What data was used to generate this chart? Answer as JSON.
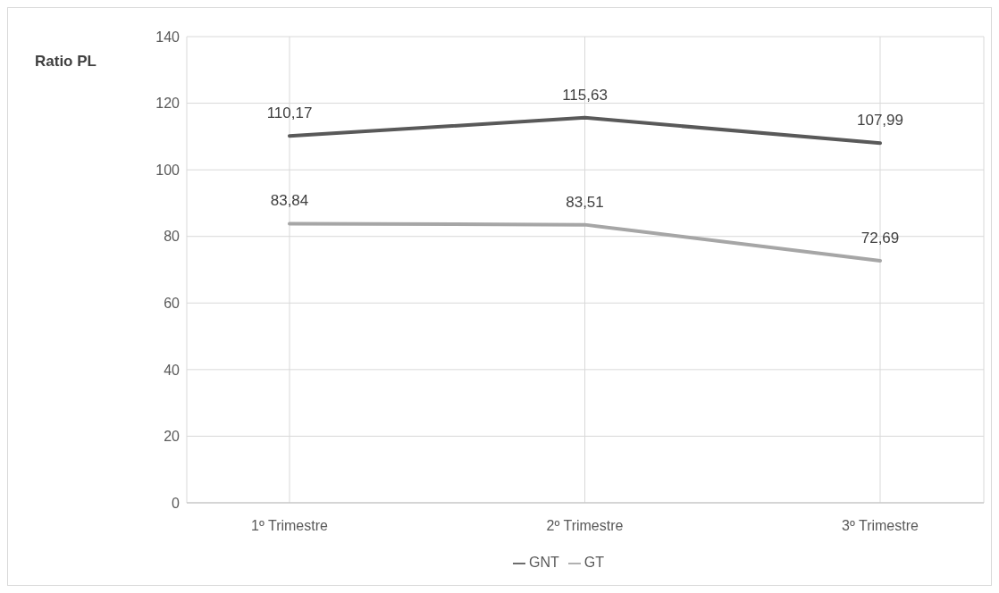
{
  "chart_data": {
    "type": "line",
    "ylabel": "Ratio PL",
    "categories": [
      "1º Trimestre",
      "2º Trimestre",
      "3º Trimestre"
    ],
    "series": [
      {
        "name": "GNT",
        "color": "#595959",
        "values": [
          110.17,
          115.63,
          107.99
        ],
        "value_labels": [
          "110,17",
          "115,63",
          "107,99"
        ]
      },
      {
        "name": "GT",
        "color": "#a6a6a6",
        "values": [
          83.84,
          83.51,
          72.69
        ],
        "value_labels": [
          "83,84",
          "83,51",
          "72,69"
        ]
      }
    ],
    "ylim": [
      0,
      140
    ],
    "yticks": [
      0,
      20,
      40,
      60,
      80,
      100,
      120,
      140
    ],
    "grid": true,
    "legend": "bottom",
    "marker": "none",
    "line_style": "solid"
  }
}
